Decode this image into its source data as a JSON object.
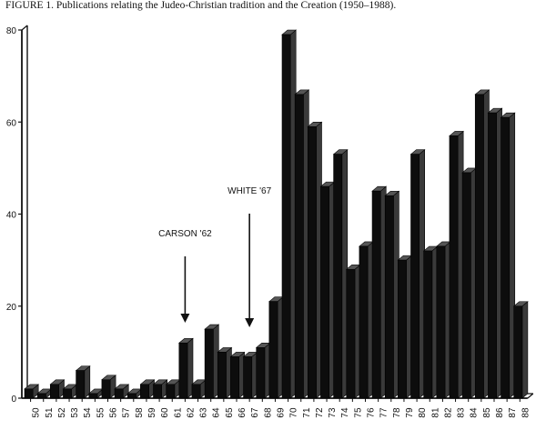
{
  "caption": "FIGURE 1.  Publications relating the Judeo-Christian tradition and the Creation (1950–1988).",
  "chart_data": {
    "type": "bar",
    "title": "FIGURE 1.  Publications relating the Judeo-Christian tradition and the Creation (1950–1988).",
    "xlabel": "",
    "ylabel": "",
    "ylim": [
      0,
      80
    ],
    "yticks": [
      0,
      20,
      40,
      60,
      80
    ],
    "grid": false,
    "categories": [
      "50",
      "51",
      "52",
      "53",
      "54",
      "55",
      "56",
      "57",
      "58",
      "59",
      "60",
      "61",
      "62",
      "63",
      "64",
      "65",
      "66",
      "67",
      "68",
      "69",
      "70",
      "71",
      "72",
      "73",
      "74",
      "75",
      "76",
      "77",
      "78",
      "79",
      "80",
      "81",
      "82",
      "83",
      "84",
      "85",
      "86",
      "87",
      "88"
    ],
    "values": [
      2,
      1,
      3,
      2,
      6,
      1,
      4,
      2,
      1,
      3,
      3,
      3,
      12,
      3,
      15,
      10,
      9,
      9,
      11,
      21,
      79,
      66,
      59,
      46,
      53,
      28,
      33,
      45,
      44,
      30,
      53,
      32,
      33,
      57,
      49,
      66,
      62,
      61,
      20
    ],
    "annotations": [
      {
        "text": "CARSON '62",
        "x": "62"
      },
      {
        "text": "WHITE '67",
        "x": "67"
      }
    ]
  }
}
